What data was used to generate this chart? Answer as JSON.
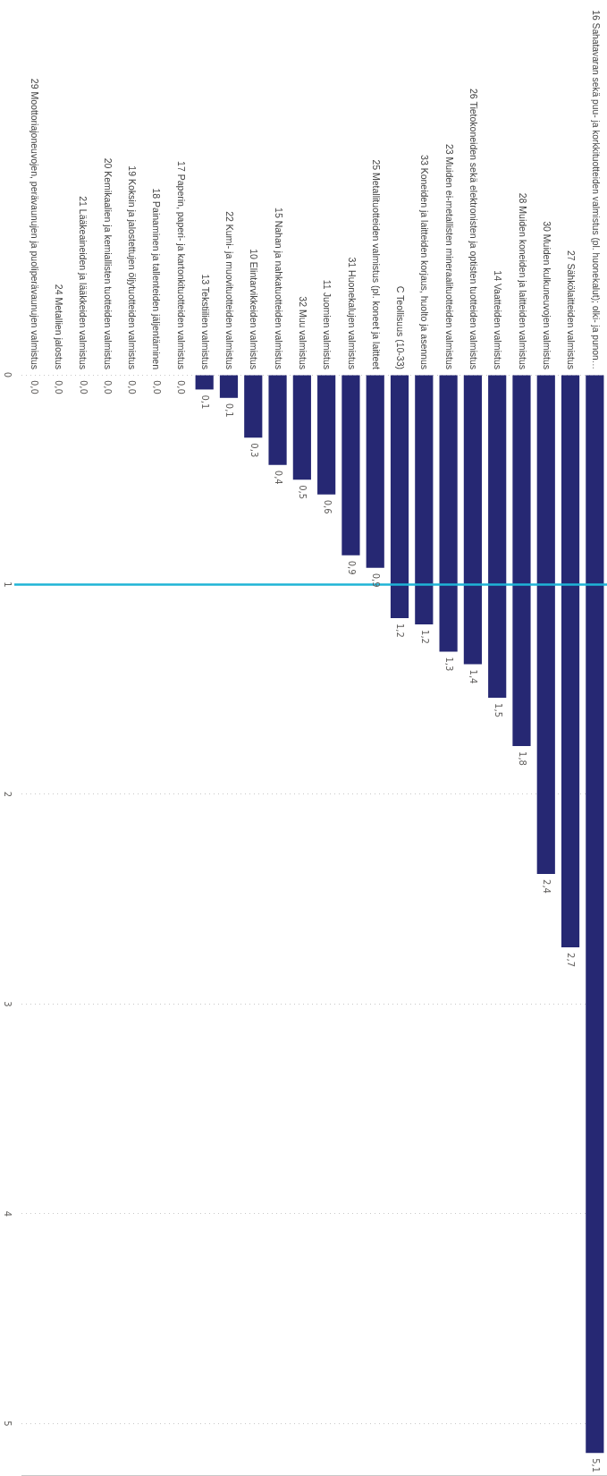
{
  "chart_data": {
    "type": "bar",
    "categories": [
      "29 Moottoriajoneuvojen, perävaunujen ja puoliperävaunujen valmistus",
      "24 Metallien jalostus",
      "21 Lääkeaineiden ja lääkkeiden valmistus",
      "20 Kemikaalien ja kemiallisten tuotteiden valmistus",
      "19 Koksin ja jalostettujen öljytuotteiden valmistus",
      "18 Painaminen ja tallenteiden jäljentäminen",
      "17 Paperin, paperi- ja kartonkituotteiden valmistus",
      "13 Tekstiilien valmistus",
      "22 Kumi- ja muovituotteiden valmistus",
      "10 Elintarvikkeiden valmistus",
      "15 Nahan ja nahkatuotteiden valmistus",
      "32 Muu valmistus",
      "11 Juomien valmistus",
      "31 Huonekalujen valmistus",
      "25 Metallituotteiden valmistus (pl. koneet ja laitteet",
      "C Teollisuus (10-33)",
      "33 Koneiden ja laitteiden korjaus, huolto ja asennus",
      "23 Muiden ei-metallisten mineraalituotteiden valmistus",
      "26 Tietokoneiden sekä elektronisten ja optisten tuotteiden valmistus",
      "14 Vaatteiden valmistus",
      "28 Muiden koneiden ja laitteiden valmistus",
      "30 Muiden kulkuneuvojen valmistus",
      "27 Sähkölaitteiden valmistus",
      "16 Sahatavaran sekä puu- ja korkkituotteiden valmistus (pl. huonekalut); olki- ja punon…"
    ],
    "values": [
      0,
      0,
      0,
      0,
      0,
      0,
      0,
      0.07,
      0.11,
      0.3,
      0.43,
      0.5,
      0.57,
      0.86,
      0.92,
      1.16,
      1.19,
      1.32,
      1.38,
      1.54,
      1.77,
      2.38,
      2.73,
      5.14
    ],
    "value_labels": [
      "0,0",
      "0,0",
      "0,0",
      "0,0",
      "0,0",
      "0,0",
      "0,0",
      "0,1",
      "0,1",
      "0,3",
      "0,4",
      "0,5",
      "0,6",
      "0,9",
      "0,9",
      "1,2",
      "1,2",
      "1,3",
      "1,4",
      "1,5",
      "1,8",
      "2,4",
      "2,7",
      "5,1"
    ],
    "color": "#262873",
    "ylim": [
      5.25,
      0
    ],
    "yticks": [
      0,
      1,
      2,
      3,
      4,
      5
    ],
    "grid": "y",
    "ref_lines": [
      {
        "axis": "y",
        "value": 1,
        "color": "#1fb4d6"
      }
    ]
  }
}
